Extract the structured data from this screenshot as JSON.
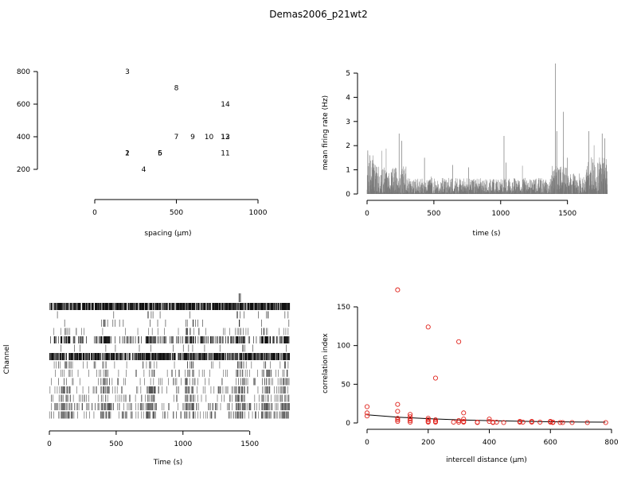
{
  "page": {
    "title": "Demas2006_p21wt2"
  },
  "chart_data": [
    {
      "id": "layout",
      "type": "scatter",
      "xlabel": "spacing (µm)",
      "ylabel": "",
      "xlim": [
        0,
        1000
      ],
      "ylim": [
        200,
        800
      ],
      "xticks": [
        0,
        500,
        1000
      ],
      "yticks": [
        200,
        400,
        600,
        800
      ],
      "points": [
        {
          "label": "1",
          "x": 200,
          "y": 300
        },
        {
          "label": "2",
          "x": 200,
          "y": 300
        },
        {
          "label": "3",
          "x": 200,
          "y": 800
        },
        {
          "label": "4",
          "x": 300,
          "y": 200
        },
        {
          "label": "5",
          "x": 400,
          "y": 300
        },
        {
          "label": "6",
          "x": 400,
          "y": 300
        },
        {
          "label": "7",
          "x": 500,
          "y": 400
        },
        {
          "label": "8",
          "x": 500,
          "y": 700
        },
        {
          "label": "9",
          "x": 600,
          "y": 400
        },
        {
          "label": "10",
          "x": 700,
          "y": 400
        },
        {
          "label": "11",
          "x": 800,
          "y": 300
        },
        {
          "label": "12",
          "x": 800,
          "y": 400
        },
        {
          "label": "13",
          "x": 800,
          "y": 400
        },
        {
          "label": "14",
          "x": 800,
          "y": 600
        }
      ]
    },
    {
      "id": "rate",
      "type": "line",
      "xlabel": "time (s)",
      "ylabel": "mean firing rate (Hz)",
      "xlim": [
        0,
        1800
      ],
      "ylim": [
        0,
        5.4
      ],
      "xticks": [
        0,
        500,
        1000,
        1500
      ],
      "yticks": [
        0,
        1,
        2,
        3,
        4,
        5
      ],
      "peaks": [
        {
          "x": 5,
          "y": 1.8
        },
        {
          "x": 20,
          "y": 1.6
        },
        {
          "x": 60,
          "y": 1.2
        },
        {
          "x": 240,
          "y": 2.5
        },
        {
          "x": 260,
          "y": 2.2
        },
        {
          "x": 430,
          "y": 1.5
        },
        {
          "x": 640,
          "y": 1.2
        },
        {
          "x": 760,
          "y": 1.1
        },
        {
          "x": 1025,
          "y": 2.4
        },
        {
          "x": 1040,
          "y": 1.3
        },
        {
          "x": 1410,
          "y": 5.4
        },
        {
          "x": 1420,
          "y": 2.6
        },
        {
          "x": 1470,
          "y": 3.4
        },
        {
          "x": 1500,
          "y": 1.5
        },
        {
          "x": 1660,
          "y": 2.6
        },
        {
          "x": 1760,
          "y": 2.5
        },
        {
          "x": 1780,
          "y": 2.3
        }
      ]
    },
    {
      "id": "raster",
      "type": "raster",
      "xlabel": "Time (s)",
      "ylabel": "Channel",
      "xlim": [
        0,
        1800
      ],
      "xticks": [
        0,
        500,
        1000,
        1500
      ],
      "channels": 14,
      "channel_density": [
        0.95,
        0.02,
        0.03,
        0.06,
        0.35,
        0.02,
        0.8,
        0.08,
        0.1,
        0.12,
        0.2,
        0.15,
        0.3,
        0.25
      ]
    },
    {
      "id": "correlation",
      "type": "scatter",
      "xlabel": "intercell distance (µm)",
      "ylabel": "correlation index",
      "xlim": [
        0,
        800
      ],
      "ylim": [
        0,
        172
      ],
      "xticks": [
        0,
        200,
        400,
        600,
        800
      ],
      "yticks": [
        0,
        50,
        100,
        150
      ],
      "points": [
        [
          0,
          21
        ],
        [
          0,
          13
        ],
        [
          0,
          9
        ],
        [
          100,
          172
        ],
        [
          100,
          24
        ],
        [
          100,
          15
        ],
        [
          100,
          6
        ],
        [
          100,
          4
        ],
        [
          100,
          2
        ],
        [
          141,
          11
        ],
        [
          141,
          8
        ],
        [
          141,
          5
        ],
        [
          141,
          3
        ],
        [
          141,
          1
        ],
        [
          200,
          124
        ],
        [
          200,
          6
        ],
        [
          200,
          4
        ],
        [
          200,
          2
        ],
        [
          200,
          1
        ],
        [
          224,
          58
        ],
        [
          224,
          4
        ],
        [
          224,
          2
        ],
        [
          224,
          1
        ],
        [
          283,
          1
        ],
        [
          300,
          105
        ],
        [
          300,
          3
        ],
        [
          300,
          1
        ],
        [
          316,
          13
        ],
        [
          316,
          5
        ],
        [
          316,
          2
        ],
        [
          316,
          1
        ],
        [
          361,
          1
        ],
        [
          361,
          0.5
        ],
        [
          400,
          5
        ],
        [
          400,
          2
        ],
        [
          412,
          1
        ],
        [
          412,
          0.5
        ],
        [
          424,
          1
        ],
        [
          447,
          0.5
        ],
        [
          500,
          2
        ],
        [
          500,
          1
        ],
        [
          510,
          1
        ],
        [
          539,
          2
        ],
        [
          539,
          1
        ],
        [
          566,
          1
        ],
        [
          600,
          2
        ],
        [
          600,
          1
        ],
        [
          608,
          1
        ],
        [
          608,
          0.5
        ],
        [
          632,
          0.5
        ],
        [
          640,
          0.5
        ],
        [
          671,
          0.5
        ],
        [
          721,
          0.5
        ],
        [
          781,
          0.5
        ]
      ],
      "fit": [
        [
          0,
          10.5
        ],
        [
          100,
          7.5
        ],
        [
          200,
          5.5
        ],
        [
          300,
          4
        ],
        [
          400,
          3
        ],
        [
          500,
          2.2
        ],
        [
          600,
          1.6
        ],
        [
          700,
          1.2
        ],
        [
          780,
          1.0
        ]
      ]
    }
  ]
}
